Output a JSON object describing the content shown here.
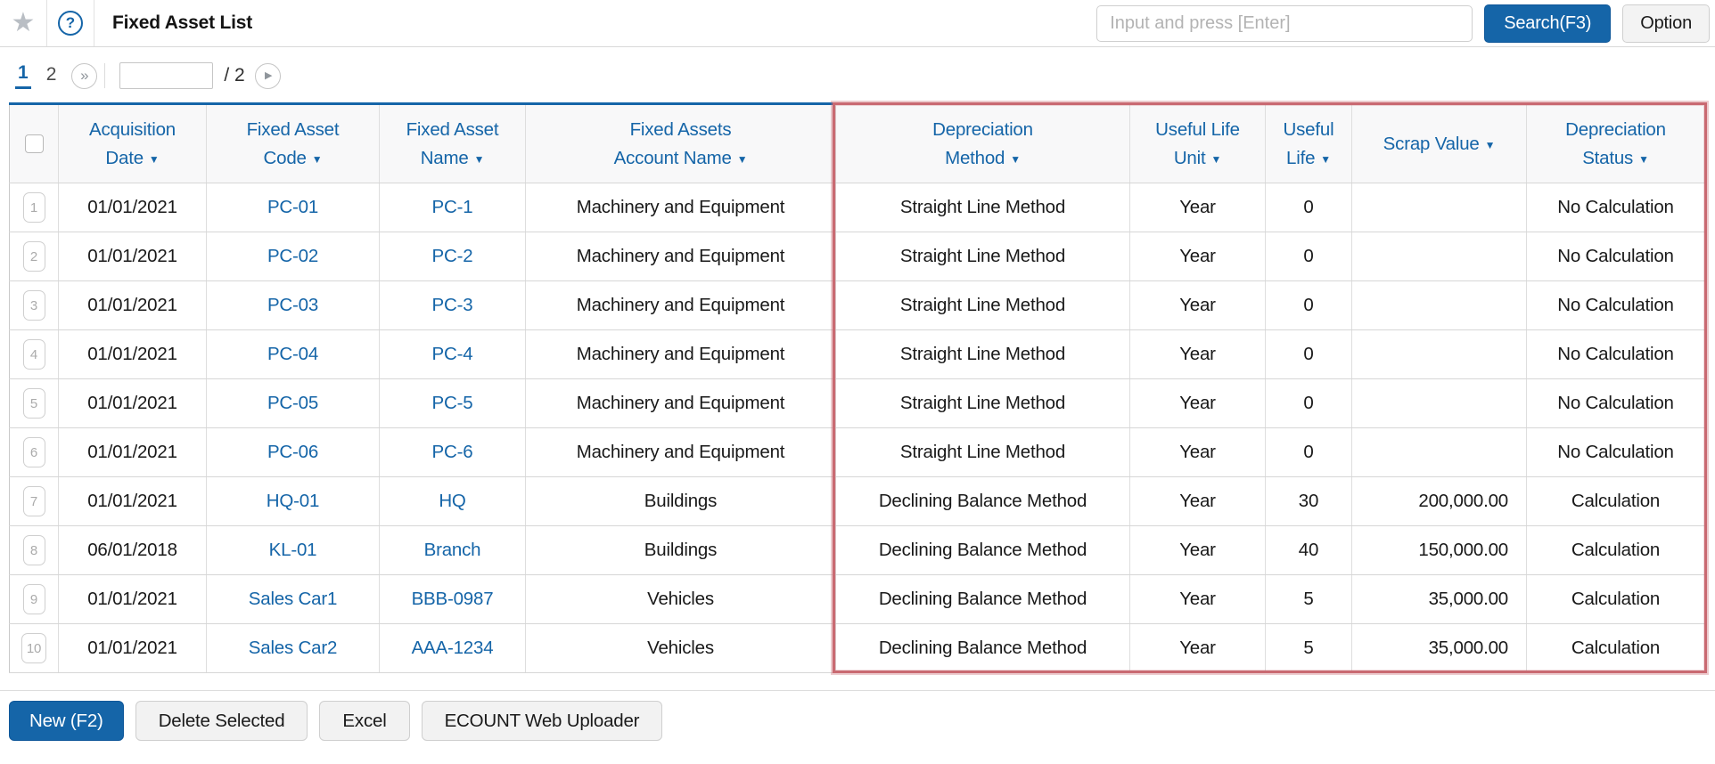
{
  "colors": {
    "accent_blue": "#1565a8",
    "highlight_red": "#c96a72",
    "header_bg": "#f8f8f9",
    "link_blue": "#1565a8"
  },
  "icons": {
    "star": "★",
    "help": "?",
    "double_chevron": "»",
    "play": "▶",
    "sort": "▼"
  },
  "header": {
    "title": "Fixed Asset List",
    "search_placeholder": "Input and press [Enter]",
    "search_value": "",
    "search_button": "Search(F3)",
    "option_button": "Option"
  },
  "pagination": {
    "pages": [
      "1",
      "2"
    ],
    "current_page": "1",
    "page_input_value": "",
    "total_label": "/ 2"
  },
  "table": {
    "sort_icon": "▼",
    "columns": [
      {
        "line1": "Acquisition",
        "line2": "Date"
      },
      {
        "line1": "Fixed Asset",
        "line2": "Code"
      },
      {
        "line1": "Fixed Asset",
        "line2": "Name"
      },
      {
        "line1": "Fixed Assets",
        "line2": "Account Name"
      },
      {
        "line1": "Depreciation",
        "line2": "Method"
      },
      {
        "line1": "Useful Life",
        "line2": "Unit"
      },
      {
        "line1": "Useful",
        "line2": "Life"
      },
      {
        "line2": "Scrap Value"
      },
      {
        "line1": "Depreciation",
        "line2": "Status"
      }
    ],
    "rows": [
      {
        "no": "1",
        "date": "01/01/2021",
        "code": "PC-01",
        "name": "PC-1",
        "account": "Machinery and Equipment",
        "method": "Straight Line Method",
        "unit": "Year",
        "life": "0",
        "scrap": "",
        "status": "No Calculation"
      },
      {
        "no": "2",
        "date": "01/01/2021",
        "code": "PC-02",
        "name": "PC-2",
        "account": "Machinery and Equipment",
        "method": "Straight Line Method",
        "unit": "Year",
        "life": "0",
        "scrap": "",
        "status": "No Calculation"
      },
      {
        "no": "3",
        "date": "01/01/2021",
        "code": "PC-03",
        "name": "PC-3",
        "account": "Machinery and Equipment",
        "method": "Straight Line Method",
        "unit": "Year",
        "life": "0",
        "scrap": "",
        "status": "No Calculation"
      },
      {
        "no": "4",
        "date": "01/01/2021",
        "code": "PC-04",
        "name": "PC-4",
        "account": "Machinery and Equipment",
        "method": "Straight Line Method",
        "unit": "Year",
        "life": "0",
        "scrap": "",
        "status": "No Calculation"
      },
      {
        "no": "5",
        "date": "01/01/2021",
        "code": "PC-05",
        "name": "PC-5",
        "account": "Machinery and Equipment",
        "method": "Straight Line Method",
        "unit": "Year",
        "life": "0",
        "scrap": "",
        "status": "No Calculation"
      },
      {
        "no": "6",
        "date": "01/01/2021",
        "code": "PC-06",
        "name": "PC-6",
        "account": "Machinery and Equipment",
        "method": "Straight Line Method",
        "unit": "Year",
        "life": "0",
        "scrap": "",
        "status": "No Calculation"
      },
      {
        "no": "7",
        "date": "01/01/2021",
        "code": "HQ-01",
        "name": "HQ",
        "account": "Buildings",
        "method": "Declining Balance Method",
        "unit": "Year",
        "life": "30",
        "scrap": "200,000.00",
        "status": "Calculation"
      },
      {
        "no": "8",
        "date": "06/01/2018",
        "code": "KL-01",
        "name": "Branch",
        "account": "Buildings",
        "method": "Declining Balance Method",
        "unit": "Year",
        "life": "40",
        "scrap": "150,000.00",
        "status": "Calculation"
      },
      {
        "no": "9",
        "date": "01/01/2021",
        "code": "Sales Car1",
        "name": "BBB-0987",
        "account": "Vehicles",
        "method": "Declining Balance Method",
        "unit": "Year",
        "life": "5",
        "scrap": "35,000.00",
        "status": "Calculation"
      },
      {
        "no": "10",
        "date": "01/01/2021",
        "code": "Sales Car2",
        "name": "AAA-1234",
        "account": "Vehicles",
        "method": "Declining Balance Method",
        "unit": "Year",
        "life": "5",
        "scrap": "35,000.00",
        "status": "Calculation"
      }
    ]
  },
  "footer": {
    "new_button": "New (F2)",
    "delete_button": "Delete Selected",
    "excel_button": "Excel",
    "uploader_button": "ECOUNT Web Uploader"
  }
}
